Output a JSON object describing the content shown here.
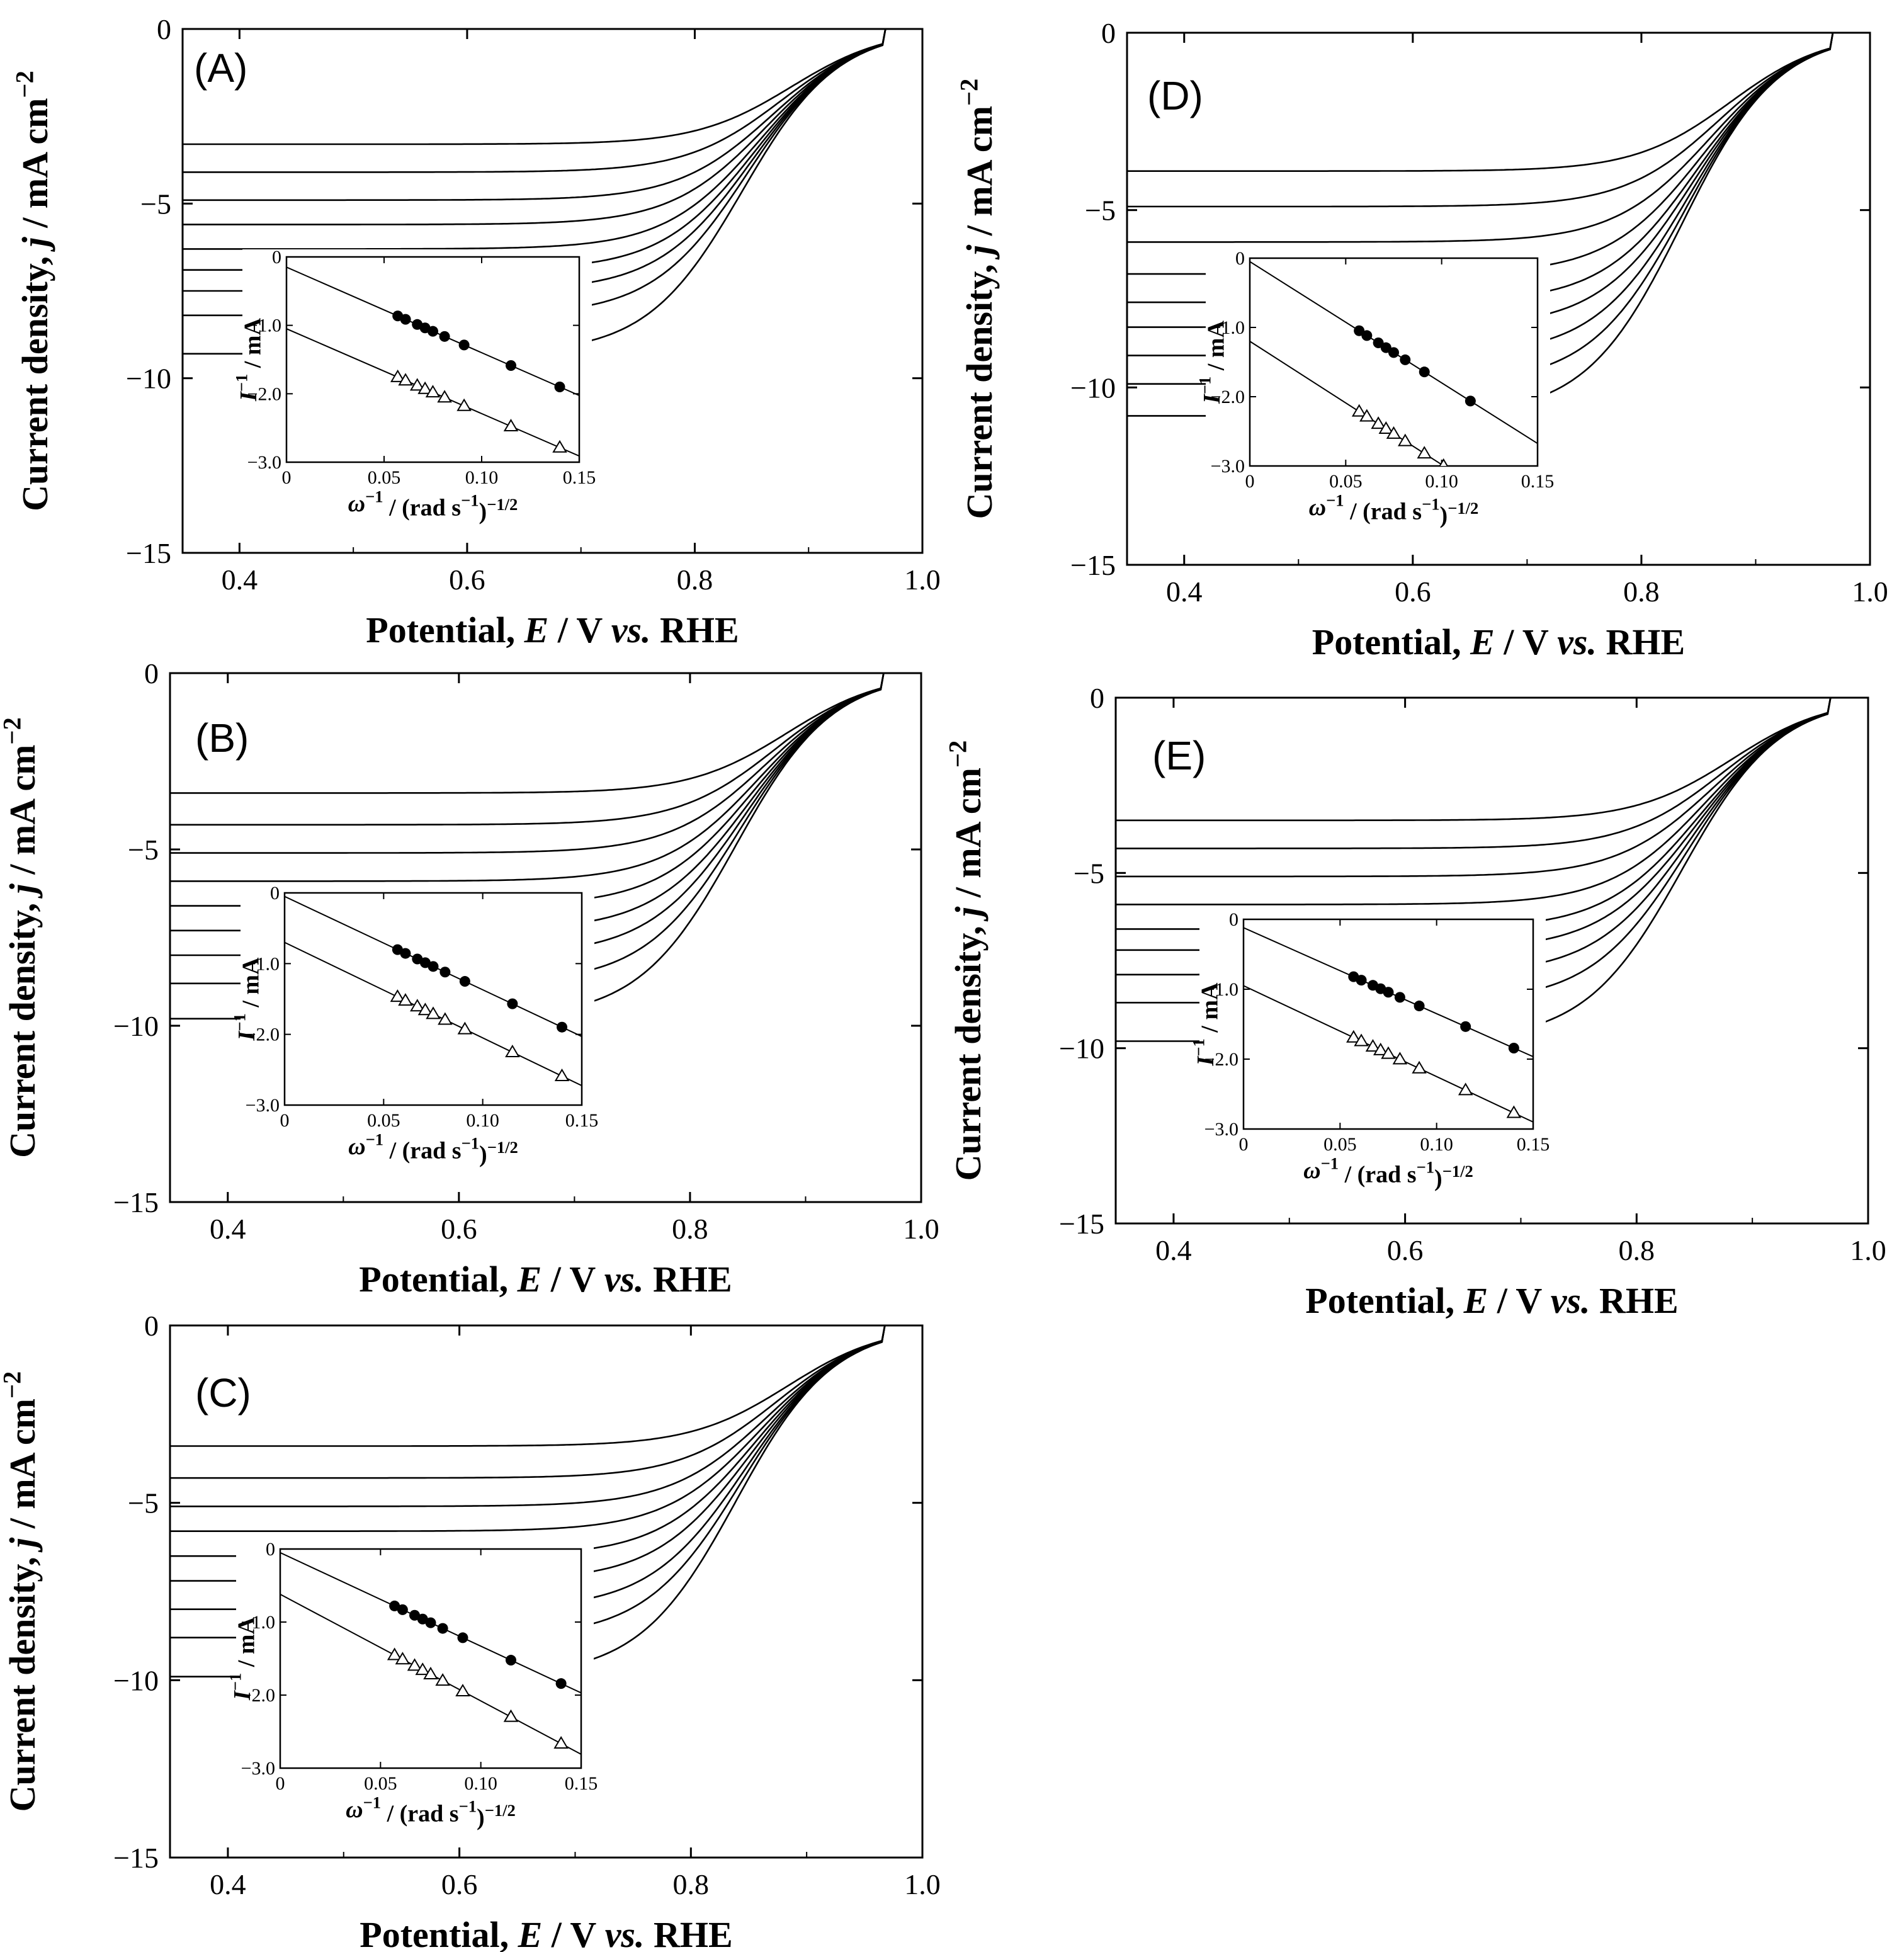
{
  "figure": {
    "axis_title_italic": "italic"
  },
  "chart_data": [
    {
      "id": "A",
      "type": "line",
      "label": "(A)",
      "xlim": [
        0.35,
        1.0
      ],
      "ylim": [
        -15,
        0
      ],
      "xticks": [
        "0.4",
        "0.6",
        "0.8",
        "1.0"
      ],
      "yticks": [
        "0",
        "−5",
        "−10",
        "−15"
      ],
      "ylabel": "Current density, j / mA cm−2",
      "xlabel": "Potential, E / V vs. RHE",
      "series": [
        {
          "limit": -3.3
        },
        {
          "limit": -4.1
        },
        {
          "limit": -4.9
        },
        {
          "limit": -5.6
        },
        {
          "limit": -6.3
        },
        {
          "limit": -6.9
        },
        {
          "limit": -7.5
        },
        {
          "limit": -8.2
        },
        {
          "limit": -9.3
        }
      ],
      "inset": {
        "xlim": [
          0,
          0.15
        ],
        "ylim": [
          -3.0,
          0
        ],
        "xticks": [
          "0",
          "0.05",
          "0.10",
          "0.15"
        ],
        "yticks": [
          "0",
          "−1.0",
          "−2.0",
          "−3.0"
        ],
        "ylabel": "I−1 / mA",
        "xlabel": "ω−1 / (rad s−1)−1/2",
        "series": [
          {
            "name": "filled",
            "marker": "circle-filled",
            "intercept": -0.15,
            "slope": -12.5,
            "x": [
              0.057,
              0.061,
              0.067,
              0.071,
              0.075,
              0.081,
              0.091,
              0.115,
              0.14
            ]
          },
          {
            "name": "open",
            "marker": "triangle-open",
            "intercept": -1.05,
            "slope": -12.4,
            "x": [
              0.057,
              0.061,
              0.067,
              0.071,
              0.075,
              0.081,
              0.091,
              0.115,
              0.14
            ]
          }
        ]
      }
    },
    {
      "id": "B",
      "type": "line",
      "label": "(B)",
      "xlim": [
        0.35,
        1.0
      ],
      "ylim": [
        -15,
        0
      ],
      "xticks": [
        "0.4",
        "0.6",
        "0.8",
        "1.0"
      ],
      "yticks": [
        "0",
        "−5",
        "−10",
        "−15"
      ],
      "ylabel": "Current density, j / mA cm−2",
      "xlabel": "Potential, E / V vs. RHE",
      "series": [
        {
          "limit": -3.4
        },
        {
          "limit": -4.3
        },
        {
          "limit": -5.1
        },
        {
          "limit": -5.9
        },
        {
          "limit": -6.6
        },
        {
          "limit": -7.3
        },
        {
          "limit": -8.0
        },
        {
          "limit": -8.8
        },
        {
          "limit": -9.8
        }
      ],
      "inset": {
        "xlim": [
          0,
          0.15
        ],
        "ylim": [
          -3.0,
          0
        ],
        "xticks": [
          "0",
          "0.05",
          "0.10",
          "0.15"
        ],
        "yticks": [
          "0",
          "−1.0",
          "−2.0",
          "−3.0"
        ],
        "ylabel": "I−1 / mA",
        "xlabel": "ω−1 / (rad s−1)−1/2",
        "series": [
          {
            "name": "filled",
            "marker": "circle-filled",
            "intercept": -0.05,
            "slope": -13.2,
            "x": [
              0.057,
              0.061,
              0.067,
              0.071,
              0.075,
              0.081,
              0.091,
              0.115,
              0.14
            ]
          },
          {
            "name": "open",
            "marker": "triangle-open",
            "intercept": -0.7,
            "slope": -13.5,
            "x": [
              0.057,
              0.061,
              0.067,
              0.071,
              0.075,
              0.081,
              0.091,
              0.115,
              0.14
            ]
          }
        ]
      }
    },
    {
      "id": "C",
      "type": "line",
      "label": "(C)",
      "xlim": [
        0.35,
        1.0
      ],
      "ylim": [
        -15,
        0
      ],
      "xticks": [
        "0.4",
        "0.6",
        "0.8",
        "1.0"
      ],
      "yticks": [
        "0",
        "−5",
        "−10",
        "−15"
      ],
      "ylabel": "Current density, j / mA cm−2",
      "xlabel": "Potential, E / V vs. RHE",
      "series": [
        {
          "limit": -3.4
        },
        {
          "limit": -4.3
        },
        {
          "limit": -5.1
        },
        {
          "limit": -5.8
        },
        {
          "limit": -6.5
        },
        {
          "limit": -7.2
        },
        {
          "limit": -8.0
        },
        {
          "limit": -8.8
        },
        {
          "limit": -9.9
        }
      ],
      "inset": {
        "xlim": [
          0,
          0.15
        ],
        "ylim": [
          -3.0,
          0
        ],
        "xticks": [
          "0",
          "0.05",
          "0.10",
          "0.15"
        ],
        "yticks": [
          "0",
          "−1.0",
          "−2.0",
          "−3.0"
        ],
        "ylabel": "I−1 / mA",
        "xlabel": "ω−1 / (rad s−1)−1/2",
        "series": [
          {
            "name": "filled",
            "marker": "circle-filled",
            "intercept": -0.05,
            "slope": -12.8,
            "x": [
              0.057,
              0.061,
              0.067,
              0.071,
              0.075,
              0.081,
              0.091,
              0.115,
              0.14
            ]
          },
          {
            "name": "open",
            "marker": "triangle-open",
            "intercept": -0.62,
            "slope": -14.6,
            "x": [
              0.057,
              0.061,
              0.067,
              0.071,
              0.075,
              0.081,
              0.091,
              0.115,
              0.14
            ]
          }
        ]
      }
    },
    {
      "id": "D",
      "type": "line",
      "label": "(D)",
      "xlim": [
        0.35,
        1.0
      ],
      "ylim": [
        -15,
        0
      ],
      "xticks": [
        "0.4",
        "0.6",
        "0.8",
        "1.0"
      ],
      "yticks": [
        "0",
        "−5",
        "−10",
        "−15"
      ],
      "ylabel": "Current density, j / mA cm−2",
      "xlabel": "Potential, E / V vs. RHE",
      "series": [
        {
          "limit": -3.9
        },
        {
          "limit": -4.9
        },
        {
          "limit": -5.9
        },
        {
          "limit": -6.8
        },
        {
          "limit": -7.6
        },
        {
          "limit": -8.3
        },
        {
          "limit": -9.1
        },
        {
          "limit": -9.9
        },
        {
          "limit": -10.8
        }
      ],
      "inset": {
        "xlim": [
          0,
          0.15
        ],
        "ylim": [
          -3.0,
          0
        ],
        "xticks": [
          "0",
          "0.05",
          "0.10",
          "0.15"
        ],
        "yticks": [
          "0",
          "−1.0",
          "−2.0",
          "−3.0"
        ],
        "ylabel": "I−1 / mA",
        "xlabel": "ω−1 / (rad s−1)−1/2",
        "series": [
          {
            "name": "filled",
            "marker": "circle-filled",
            "intercept": -0.05,
            "slope": -17.5,
            "x": [
              0.057,
              0.061,
              0.067,
              0.071,
              0.075,
              0.081,
              0.091,
              0.115
            ]
          },
          {
            "name": "open",
            "marker": "triangle-open",
            "intercept": -1.2,
            "slope": -17.8,
            "x": [
              0.057,
              0.061,
              0.067,
              0.071,
              0.075,
              0.081,
              0.091,
              0.101
            ]
          }
        ]
      }
    },
    {
      "id": "E",
      "type": "line",
      "label": "(E)",
      "xlim": [
        0.35,
        1.0
      ],
      "ylim": [
        -15,
        0
      ],
      "xticks": [
        "0.4",
        "0.6",
        "0.8",
        "1.0"
      ],
      "yticks": [
        "0",
        "−5",
        "−10",
        "−15"
      ],
      "ylabel": "Current density, j / mA cm−2",
      "xlabel": "Potential, E / V vs. RHE",
      "series": [
        {
          "limit": -3.5
        },
        {
          "limit": -4.3
        },
        {
          "limit": -5.1
        },
        {
          "limit": -5.9
        },
        {
          "limit": -6.6
        },
        {
          "limit": -7.2
        },
        {
          "limit": -7.9
        },
        {
          "limit": -8.7
        },
        {
          "limit": -9.8
        }
      ],
      "inset": {
        "xlim": [
          0,
          0.15
        ],
        "ylim": [
          -3.0,
          0
        ],
        "xticks": [
          "0",
          "0.05",
          "0.10",
          "0.15"
        ],
        "yticks": [
          "0",
          "−1.0",
          "−2.0",
          "−3.0"
        ],
        "ylabel": "I−1 / mA",
        "xlabel": "ω−1 / (rad s−1)−1/2",
        "series": [
          {
            "name": "filled",
            "marker": "circle-filled",
            "intercept": -0.12,
            "slope": -12.3,
            "x": [
              0.057,
              0.061,
              0.067,
              0.071,
              0.075,
              0.081,
              0.091,
              0.115,
              0.14
            ]
          },
          {
            "name": "open",
            "marker": "triangle-open",
            "intercept": -0.95,
            "slope": -13.0,
            "x": [
              0.057,
              0.061,
              0.067,
              0.071,
              0.075,
              0.081,
              0.091,
              0.115,
              0.14
            ]
          }
        ]
      }
    }
  ]
}
